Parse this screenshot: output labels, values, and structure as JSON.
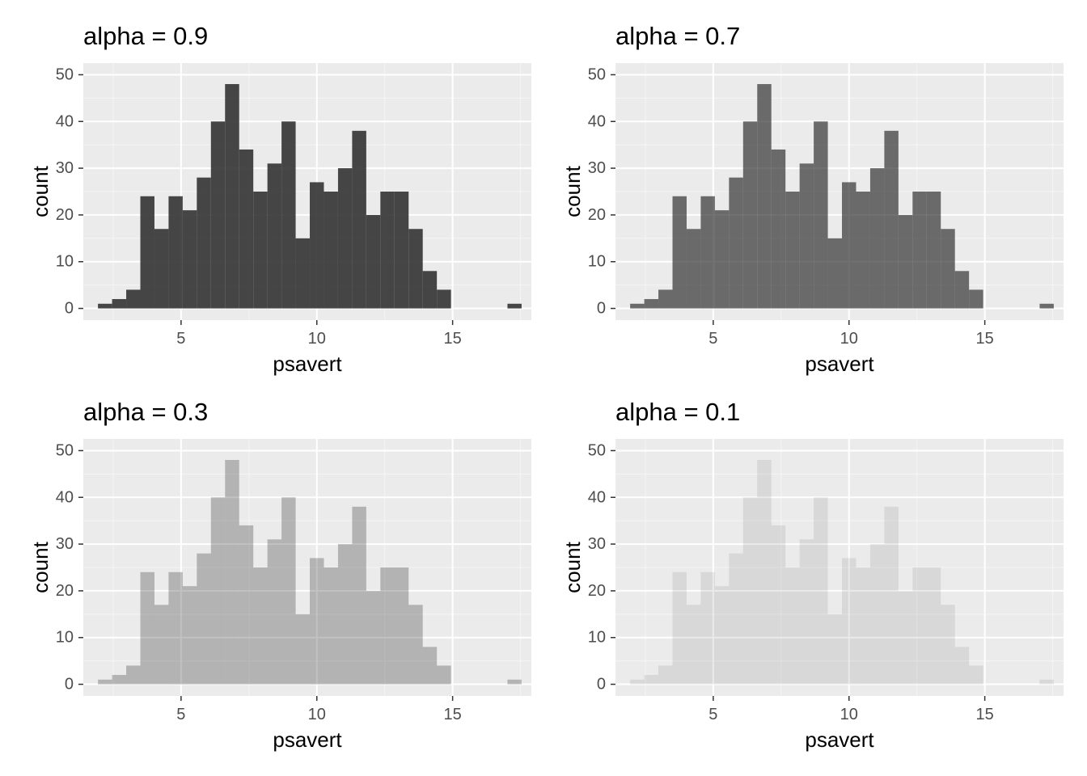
{
  "chart_data": [
    {
      "type": "bar",
      "title": "alpha = 0.9",
      "alpha": 0.9,
      "fill_color": "#333333",
      "xlabel": "psavert",
      "ylabel": "count",
      "xlim": [
        1.4,
        17.9
      ],
      "ylim": [
        -2.5,
        52.5
      ],
      "xticks": [
        5,
        10,
        15
      ],
      "yticks": [
        0,
        10,
        20,
        30,
        40,
        50
      ],
      "bin_width": 0.52,
      "bin_centers": [
        2.2,
        2.72,
        3.24,
        3.76,
        4.28,
        4.8,
        5.32,
        5.84,
        6.36,
        6.88,
        7.4,
        7.92,
        8.44,
        8.96,
        9.48,
        10.0,
        10.52,
        11.04,
        11.56,
        12.08,
        12.6,
        13.12,
        13.64,
        14.16,
        14.68,
        15.2,
        15.72,
        16.24,
        16.76,
        17.28
      ],
      "values": [
        1,
        2,
        4,
        24,
        17,
        24,
        21,
        28,
        40,
        48,
        34,
        25,
        31,
        40,
        15,
        27,
        25,
        30,
        38,
        20,
        25,
        25,
        17,
        8,
        4,
        0,
        0,
        0,
        0,
        1
      ]
    },
    {
      "type": "bar",
      "title": "alpha = 0.7",
      "alpha": 0.7,
      "fill_color": "#333333",
      "xlabel": "psavert",
      "ylabel": "count",
      "xlim": [
        1.4,
        17.9
      ],
      "ylim": [
        -2.5,
        52.5
      ],
      "xticks": [
        5,
        10,
        15
      ],
      "yticks": [
        0,
        10,
        20,
        30,
        40,
        50
      ],
      "bin_width": 0.52,
      "bin_centers": [
        2.2,
        2.72,
        3.24,
        3.76,
        4.28,
        4.8,
        5.32,
        5.84,
        6.36,
        6.88,
        7.4,
        7.92,
        8.44,
        8.96,
        9.48,
        10.0,
        10.52,
        11.04,
        11.56,
        12.08,
        12.6,
        13.12,
        13.64,
        14.16,
        14.68,
        15.2,
        15.72,
        16.24,
        16.76,
        17.28
      ],
      "values": [
        1,
        2,
        4,
        24,
        17,
        24,
        21,
        28,
        40,
        48,
        34,
        25,
        31,
        40,
        15,
        27,
        25,
        30,
        38,
        20,
        25,
        25,
        17,
        8,
        4,
        0,
        0,
        0,
        0,
        1
      ]
    },
    {
      "type": "bar",
      "title": "alpha = 0.3",
      "alpha": 0.3,
      "fill_color": "#333333",
      "xlabel": "psavert",
      "ylabel": "count",
      "xlim": [
        1.4,
        17.9
      ],
      "ylim": [
        -2.5,
        52.5
      ],
      "xticks": [
        5,
        10,
        15
      ],
      "yticks": [
        0,
        10,
        20,
        30,
        40,
        50
      ],
      "bin_width": 0.52,
      "bin_centers": [
        2.2,
        2.72,
        3.24,
        3.76,
        4.28,
        4.8,
        5.32,
        5.84,
        6.36,
        6.88,
        7.4,
        7.92,
        8.44,
        8.96,
        9.48,
        10.0,
        10.52,
        11.04,
        11.56,
        12.08,
        12.6,
        13.12,
        13.64,
        14.16,
        14.68,
        15.2,
        15.72,
        16.24,
        16.76,
        17.28
      ],
      "values": [
        1,
        2,
        4,
        24,
        17,
        24,
        21,
        28,
        40,
        48,
        34,
        25,
        31,
        40,
        15,
        27,
        25,
        30,
        38,
        20,
        25,
        25,
        17,
        8,
        4,
        0,
        0,
        0,
        0,
        1
      ]
    },
    {
      "type": "bar",
      "title": "alpha = 0.1",
      "alpha": 0.1,
      "fill_color": "#333333",
      "xlabel": "psavert",
      "ylabel": "count",
      "xlim": [
        1.4,
        17.9
      ],
      "ylim": [
        -2.5,
        52.5
      ],
      "xticks": [
        5,
        10,
        15
      ],
      "yticks": [
        0,
        10,
        20,
        30,
        40,
        50
      ],
      "bin_width": 0.52,
      "bin_centers": [
        2.2,
        2.72,
        3.24,
        3.76,
        4.28,
        4.8,
        5.32,
        5.84,
        6.36,
        6.88,
        7.4,
        7.92,
        8.44,
        8.96,
        9.48,
        10.0,
        10.52,
        11.04,
        11.56,
        12.08,
        12.6,
        13.12,
        13.64,
        14.16,
        14.68,
        15.2,
        15.72,
        16.24,
        16.76,
        17.28
      ],
      "values": [
        1,
        2,
        4,
        24,
        17,
        24,
        21,
        28,
        40,
        48,
        34,
        25,
        31,
        40,
        15,
        27,
        25,
        30,
        38,
        20,
        25,
        25,
        17,
        8,
        4,
        0,
        0,
        0,
        0,
        1
      ]
    }
  ],
  "colors": {
    "panel_background": "#ebebeb",
    "grid_major": "#ffffff",
    "grid_minor": "#f5f5f5",
    "tick_text": "#4d4d4d",
    "tick_mark": "#333333"
  }
}
